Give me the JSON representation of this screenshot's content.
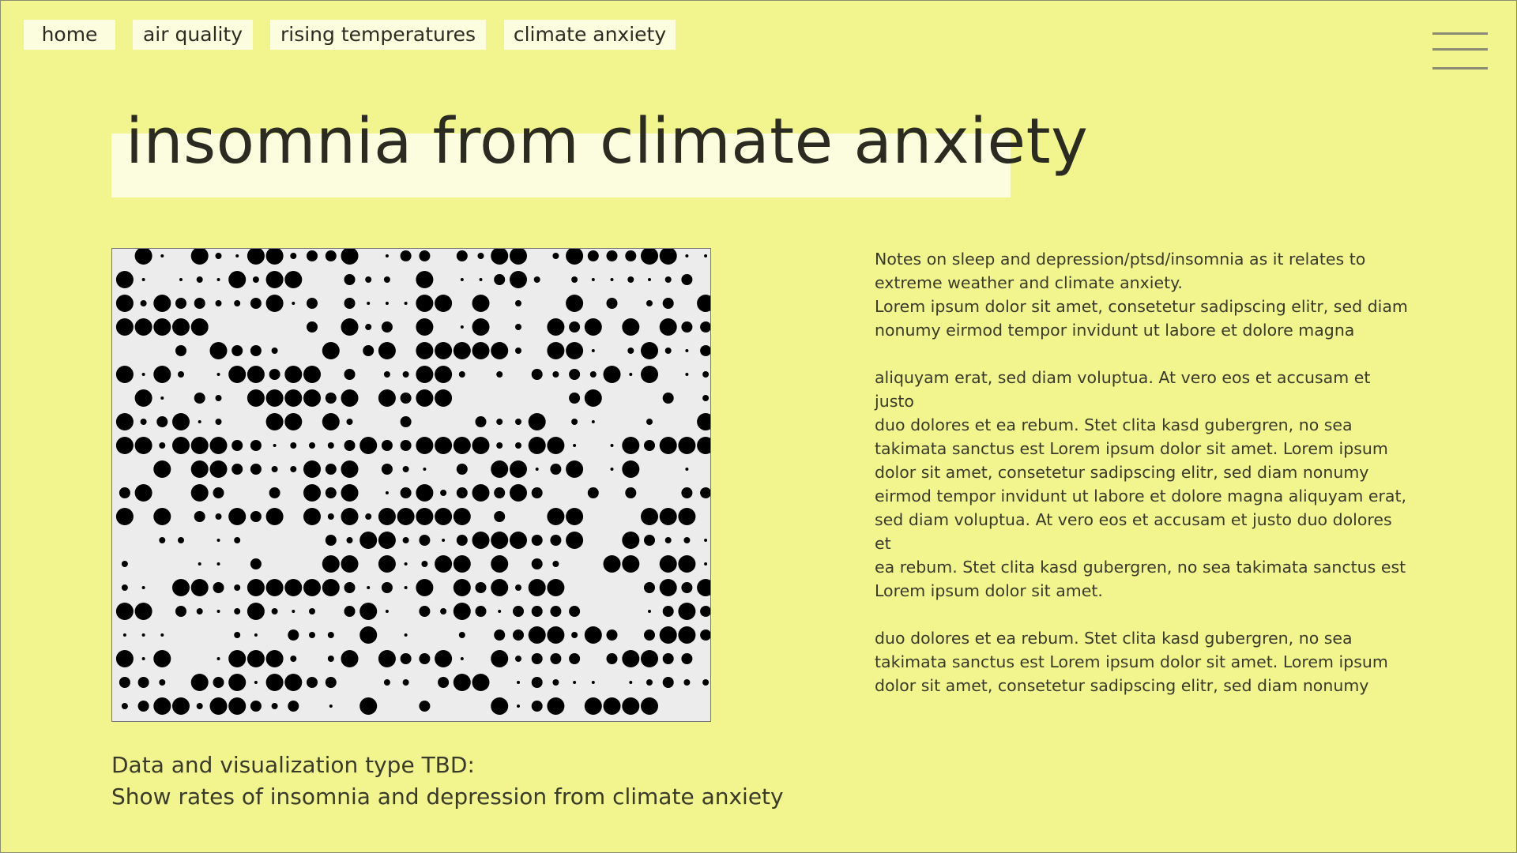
{
  "nav": {
    "items": [
      {
        "label": "home",
        "name": "nav-home"
      },
      {
        "label": "air quality",
        "name": "nav-air-quality"
      },
      {
        "label": "rising temperatures",
        "name": "nav-rising-temperatures"
      },
      {
        "label": "climate anxiety",
        "name": "nav-climate-anxiety"
      }
    ],
    "menu_icon": "hamburger-menu-icon"
  },
  "page": {
    "title": "insomnia from climate anxiety"
  },
  "visualization": {
    "icon": "dot-matrix-placeholder"
  },
  "notes": {
    "intro_lines": [
      "Notes on sleep and depression/ptsd/insomnia as it relates to",
      "extreme weather and climate anxiety.",
      "Lorem ipsum dolor sit amet, consetetur sadipscing elitr, sed diam",
      "nonumy eirmod tempor invidunt ut labore et dolore magna"
    ],
    "body_lines": [
      "aliquyam erat, sed diam voluptua. At vero eos et accusam et justo",
      "duo dolores et ea rebum. Stet clita kasd gubergren, no sea",
      "takimata sanctus est Lorem ipsum dolor sit amet. Lorem ipsum",
      "dolor sit amet, consetetur sadipscing elitr, sed diam nonumy",
      "eirmod tempor invidunt ut labore et dolore magna aliquyam erat,",
      "sed diam voluptua. At vero eos et accusam et justo duo dolores et",
      "ea rebum. Stet clita kasd gubergren, no sea takimata sanctus est",
      "Lorem ipsum dolor sit amet."
    ],
    "end_lines": [
      "duo dolores et ea rebum. Stet clita kasd gubergren, no sea",
      "takimata sanctus est Lorem ipsum dolor sit amet. Lorem ipsum",
      "dolor sit amet, consetetur sadipscing elitr, sed diam nonumy"
    ]
  },
  "caption": {
    "line1": "Data and visualization type TBD:",
    "line2": "Show rates of insomnia and depression from climate anxiety"
  },
  "colors": {
    "background": "#f2f58d",
    "highlight": "#fbfdde",
    "text": "#2b2b22",
    "dot": "#000000",
    "viz_bg": "#ececec"
  }
}
